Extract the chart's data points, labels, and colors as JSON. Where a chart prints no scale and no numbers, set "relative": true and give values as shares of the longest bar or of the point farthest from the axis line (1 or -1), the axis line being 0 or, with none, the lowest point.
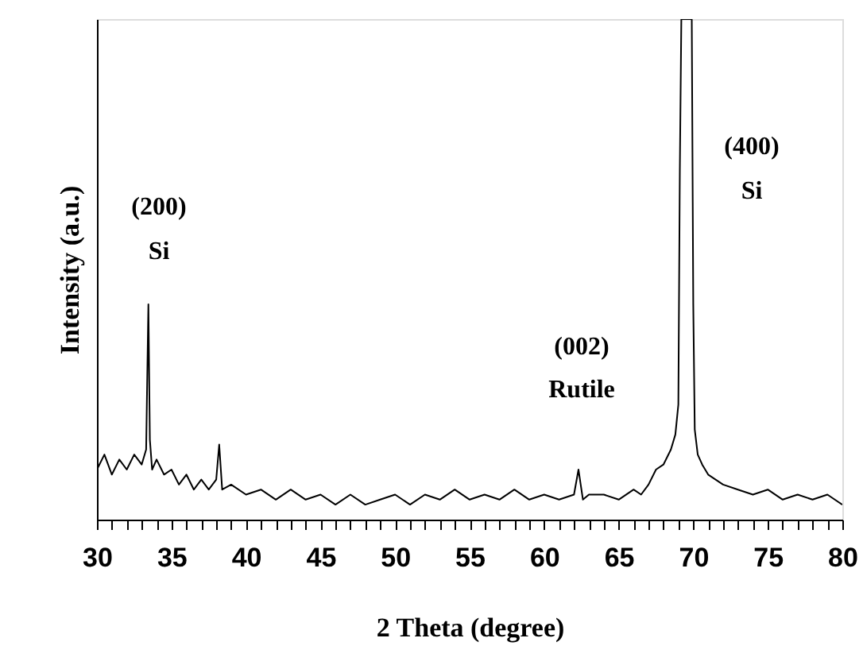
{
  "chart_data": {
    "type": "line",
    "relative": true,
    "xlabel": "2 Theta (degree)",
    "ylabel": "Intensity (a.u.)",
    "xlim": [
      30,
      80
    ],
    "xticks": [
      30,
      {
        "value": 31,
        "label": null
      },
      {
        "value": 32,
        "label": null
      },
      {
        "value": 33,
        "label": null
      },
      {
        "value": 34,
        "label": null
      },
      35,
      {
        "value": 36,
        "label": null
      },
      {
        "value": 37,
        "label": null
      },
      {
        "value": 38,
        "label": null
      },
      {
        "value": 39,
        "label": null
      },
      40,
      {
        "value": 41,
        "label": null
      },
      {
        "value": 42,
        "label": null
      },
      {
        "value": 43,
        "label": null
      },
      {
        "value": 44,
        "label": null
      },
      45,
      {
        "value": 46,
        "label": null
      },
      {
        "value": 47,
        "label": null
      },
      {
        "value": 48,
        "label": null
      },
      {
        "value": 49,
        "label": null
      },
      50,
      {
        "value": 51,
        "label": null
      },
      {
        "value": 52,
        "label": null
      },
      {
        "value": 53,
        "label": null
      },
      {
        "value": 54,
        "label": null
      },
      55,
      {
        "value": 56,
        "label": null
      },
      {
        "value": 57,
        "label": null
      },
      {
        "value": 58,
        "label": null
      },
      {
        "value": 59,
        "label": null
      },
      60,
      {
        "value": 61,
        "label": null
      },
      {
        "value": 62,
        "label": null
      },
      {
        "value": 63,
        "label": null
      },
      {
        "value": 64,
        "label": null
      },
      65,
      {
        "value": 66,
        "label": null
      },
      {
        "value": 67,
        "label": null
      },
      {
        "value": 68,
        "label": null
      },
      {
        "value": 69,
        "label": null
      },
      70,
      {
        "value": 71,
        "label": null
      },
      {
        "value": 72,
        "label": null
      },
      {
        "value": 73,
        "label": null
      },
      {
        "value": 74,
        "label": null
      },
      75,
      {
        "value": 76,
        "label": null
      },
      {
        "value": 77,
        "label": null
      },
      {
        "value": 78,
        "label": null
      },
      {
        "value": 79,
        "label": null
      },
      80
    ],
    "grid": false,
    "marker": "none",
    "line_style": "solid",
    "series": [
      {
        "color": "#000000",
        "x": [
          30.0,
          30.5,
          31.0,
          31.5,
          32.0,
          32.5,
          33.0,
          33.3,
          33.45,
          33.55,
          33.7,
          34.0,
          34.5,
          35.0,
          35.5,
          36.0,
          36.5,
          37.0,
          37.5,
          38.0,
          38.2,
          38.4,
          39.0,
          40.0,
          41.0,
          42.0,
          43.0,
          44.0,
          45.0,
          46.0,
          47.0,
          48.0,
          49.0,
          50.0,
          51.0,
          52.0,
          53.0,
          54.0,
          55.0,
          56.0,
          57.0,
          58.0,
          59.0,
          60.0,
          61.0,
          62.0,
          62.3,
          62.6,
          63.0,
          64.0,
          65.0,
          66.0,
          66.5,
          67.0,
          67.5,
          68.0,
          68.5,
          68.8,
          69.0,
          69.1,
          69.2,
          69.9,
          70.0,
          70.1,
          70.3,
          70.6,
          71.0,
          71.5,
          72.0,
          73.0,
          74.0,
          75.0,
          76.0,
          77.0,
          78.0,
          79.0,
          80.0
        ],
        "values": [
          0.1,
          0.13,
          0.09,
          0.12,
          0.1,
          0.13,
          0.11,
          0.14,
          0.43,
          0.16,
          0.1,
          0.12,
          0.09,
          0.1,
          0.07,
          0.09,
          0.06,
          0.08,
          0.06,
          0.08,
          0.15,
          0.06,
          0.07,
          0.05,
          0.06,
          0.04,
          0.06,
          0.04,
          0.05,
          0.03,
          0.05,
          0.03,
          0.04,
          0.05,
          0.03,
          0.05,
          0.04,
          0.06,
          0.04,
          0.05,
          0.04,
          0.06,
          0.04,
          0.05,
          0.04,
          0.05,
          0.1,
          0.04,
          0.05,
          0.05,
          0.04,
          0.06,
          0.05,
          0.07,
          0.1,
          0.11,
          0.14,
          0.17,
          0.23,
          0.7,
          1.0,
          1.0,
          0.43,
          0.18,
          0.13,
          0.11,
          0.09,
          0.08,
          0.07,
          0.06,
          0.05,
          0.06,
          0.04,
          0.05,
          0.04,
          0.05,
          0.03
        ]
      }
    ],
    "annotations": [
      "(200)",
      "Si",
      "(002)",
      "Rutile",
      "(400)",
      "Si"
    ]
  }
}
